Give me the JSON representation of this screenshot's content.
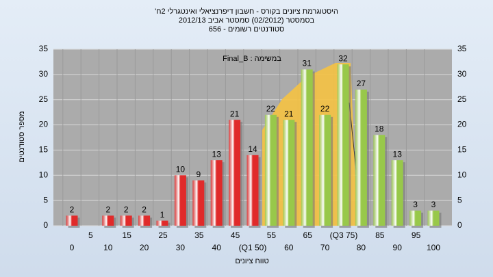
{
  "chart_data": {
    "type": "bar",
    "title": "היסטוגרמת ציונים בקורס - חשבון דיפרנציאלי ואינטגרלי 2ח'",
    "subtitle": [
      "בסמסטר  (02/2012)  סמסטר אביב 2012/13",
      "סטודנטים רשומים - 656"
    ],
    "annotation": "במשימה : Final_B",
    "x_label": "טווח ציונים",
    "y_label": "מספר סטודנטים",
    "categories": [
      "0",
      "5",
      "10",
      "15",
      "20",
      "25",
      "30",
      "35",
      "40",
      "45",
      "(Q1 50)",
      "55",
      "60",
      "65",
      "70",
      "(Q3 75)",
      "80",
      "85",
      "90",
      "95",
      "100"
    ],
    "values": [
      2,
      0,
      2,
      2,
      2,
      1,
      10,
      9,
      13,
      21,
      14,
      22,
      21,
      31,
      22,
      32,
      27,
      18,
      13,
      3,
      3
    ],
    "colors": [
      "#e02a2a",
      "#e02a2a",
      "#e02a2a",
      "#e02a2a",
      "#e02a2a",
      "#e02a2a",
      "#e02a2a",
      "#e02a2a",
      "#e02a2a",
      "#e02a2a",
      "#e02a2a",
      "#98c84a",
      "#98c84a",
      "#98c84a",
      "#98c84a",
      "#98c84a",
      "#98c84a",
      "#98c84a",
      "#98c84a",
      "#98c84a",
      "#98c84a"
    ],
    "ylim": [
      0,
      35
    ],
    "yticks": [
      0,
      5,
      10,
      15,
      20,
      25,
      30,
      35
    ],
    "grid": true
  }
}
